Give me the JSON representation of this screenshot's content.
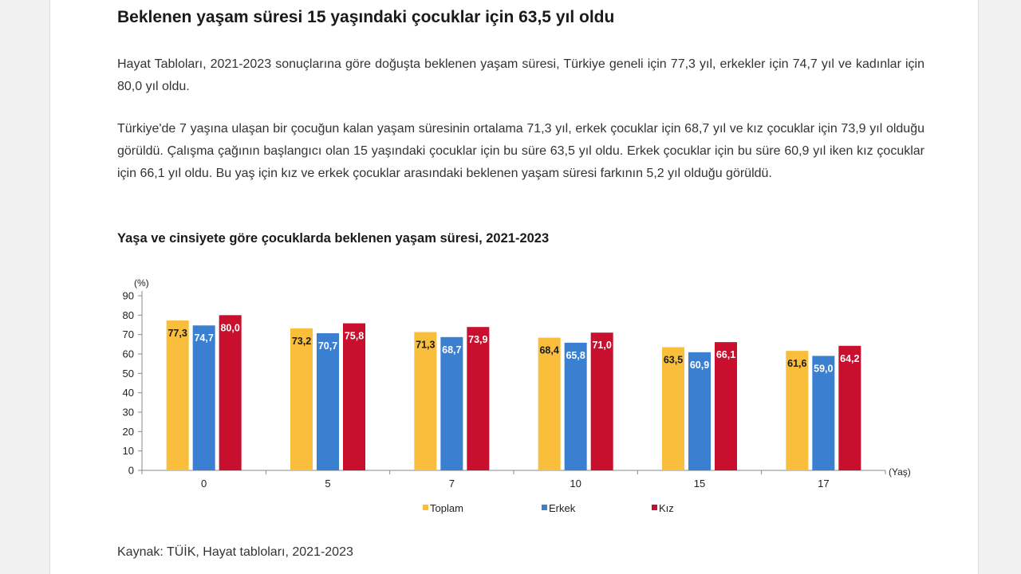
{
  "article": {
    "headline": "Beklenen yaşam süresi 15 yaşındaki çocuklar için 63,5 yıl oldu",
    "paragraph1": "Hayat Tabloları, 2021-2023 sonuçlarına göre doğuşta beklenen yaşam süresi, Türkiye geneli için 77,3 yıl, erkekler için 74,7 yıl ve kadınlar için 80,0 yıl oldu.",
    "paragraph2": "Türkiye'de 7 yaşına ulaşan bir çocuğun kalan yaşam süresinin ortalama 71,3 yıl, erkek çocuklar için 68,7 yıl ve kız çocuklar için 73,9 yıl olduğu görüldü. Çalışma çağının başlangıcı olan 15 yaşındaki çocuklar için bu süre 63,5 yıl oldu. Erkek çocuklar için bu süre 60,9 yıl iken kız çocuklar için 66,1 yıl oldu. Bu yaş için kız ve erkek çocuklar arasındaki beklenen yaşam süresi farkının 5,2 yıl olduğu görüldü.",
    "source": "Kaynak: TÜİK, Hayat tabloları, 2021-2023"
  },
  "chart_data": {
    "type": "bar",
    "title": "Yaşa ve cinsiyete göre çocuklarda beklenen yaşam süresi, 2021-2023",
    "ylabel": "(%)",
    "xlabel": "(Yaş)",
    "ylim": [
      0,
      90
    ],
    "yticks": [
      0,
      10,
      20,
      30,
      40,
      50,
      60,
      70,
      80,
      90
    ],
    "categories": [
      "0",
      "5",
      "7",
      "10",
      "15",
      "17"
    ],
    "series": [
      {
        "name": "Toplam",
        "color": "#f8be3c",
        "label_color": "#1a1a1a",
        "values": [
          77.3,
          73.2,
          71.3,
          68.4,
          63.5,
          61.6
        ],
        "labels": [
          "77,3",
          "73,2",
          "71,3",
          "68,4",
          "63,5",
          "61,6"
        ]
      },
      {
        "name": "Erkek",
        "color": "#3b7fd0",
        "label_color": "#ffffff",
        "values": [
          74.7,
          70.7,
          68.7,
          65.8,
          60.9,
          59.0
        ],
        "labels": [
          "74,7",
          "70,7",
          "68,7",
          "65,8",
          "60,9",
          "59,0"
        ]
      },
      {
        "name": "Kız",
        "color": "#c8102e",
        "label_color": "#ffffff",
        "values": [
          80.0,
          75.8,
          73.9,
          71.0,
          66.1,
          64.2
        ],
        "labels": [
          "80,0",
          "75,8",
          "73,9",
          "71,0",
          "66,1",
          "64,2"
        ]
      }
    ],
    "grid": false,
    "legend_position": "bottom"
  }
}
